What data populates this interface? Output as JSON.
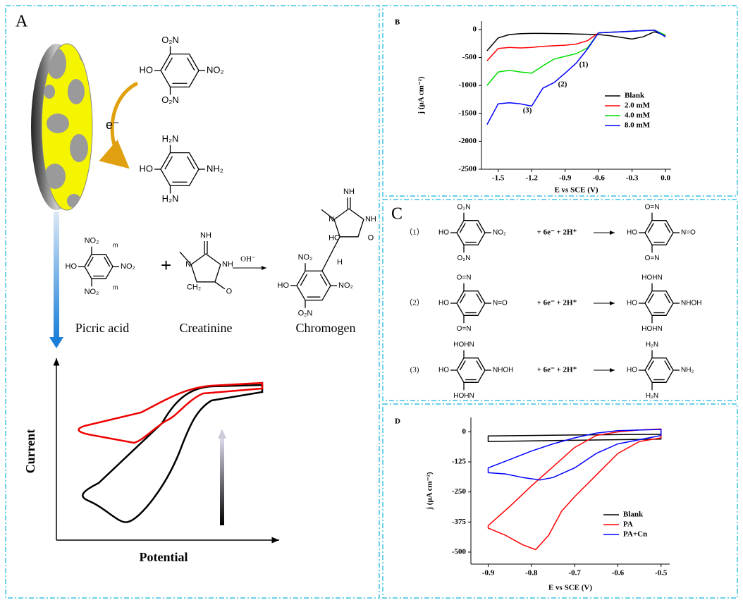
{
  "panel_a": {
    "label": "A",
    "nitro": [
      "O₂N",
      "HO",
      "NO₂",
      "O₂N"
    ],
    "electron": "e⁻",
    "amine": [
      "H₂N",
      "HO",
      "NH₂",
      "H₂N"
    ],
    "picric": [
      "NO₂",
      "HO",
      "NO₂",
      "NO₂"
    ],
    "marks": [
      "m",
      "m"
    ],
    "plus": "+",
    "creatinine": [
      "NH",
      "N",
      "NH",
      "CH₂",
      "O"
    ],
    "reagent": "OH⁻",
    "chromogen": [
      "NH",
      "N",
      "NH",
      "HC",
      "O",
      "H",
      "NO₂",
      "HO",
      "NO₂",
      "O₂N"
    ],
    "names": [
      "Picric acid",
      "Creatinine",
      "Chromogen"
    ],
    "y_axis": "Current",
    "x_axis": "Potential"
  },
  "panel_c": {
    "label": "C",
    "rows": [
      {
        "step": "（1）",
        "left": [
          "O₂N",
          "HO",
          "NO₂",
          "O₂N"
        ],
        "reagents": "+ 6e⁻ + 2H⁺",
        "right": [
          "O=N",
          "HO",
          "N=O",
          "O=N"
        ]
      },
      {
        "step": "（2）",
        "left": [
          "O=N",
          "HO",
          "N=O",
          "O=N"
        ],
        "reagents": "+ 6e⁻ + 2H⁺",
        "right": [
          "HOHN",
          "HO",
          "NHOH",
          "HOHN"
        ]
      },
      {
        "step": "(3)",
        "left": [
          "HOHN",
          "HO",
          "NHOH",
          "HOHN"
        ],
        "reagents": "+ 6e⁻ + 2H⁺",
        "right": [
          "H₂N",
          "HO",
          "NH₂",
          "H₂N"
        ]
      }
    ]
  },
  "chart_data": [
    {
      "type": "line",
      "panel_label": "B",
      "xlabel": "E vs SCE (V)",
      "ylabel": "j (μA cm⁻²)",
      "x": [
        -1.6,
        -1.5,
        -1.4,
        -1.3,
        -1.2,
        -1.1,
        -1.0,
        -0.9,
        -0.8,
        -0.7,
        -0.6,
        -0.5,
        -0.4,
        -0.3,
        -0.2,
        -0.1,
        0.0
      ],
      "series": [
        {
          "name": "Blank",
          "color": "#000000",
          "values": [
            -380,
            -150,
            -90,
            -75,
            -70,
            -70,
            -72,
            -75,
            -80,
            -85,
            -90,
            -110,
            -140,
            -170,
            -130,
            -40,
            -100
          ]
        },
        {
          "name": "2.0 mM",
          "color": "#ff0000",
          "values": [
            -560,
            -340,
            -320,
            -330,
            -320,
            -300,
            -290,
            -280,
            -260,
            -200,
            -60,
            -50,
            -40,
            -30,
            -20,
            -10,
            -110
          ]
        },
        {
          "name": "4.0 mM",
          "color": "#00dd00",
          "values": [
            -1000,
            -760,
            -730,
            -760,
            -780,
            -650,
            -530,
            -480,
            -430,
            -330,
            -60,
            -50,
            -40,
            -30,
            -20,
            -10,
            -100
          ]
        },
        {
          "name": "8.0 mM",
          "color": "#0000ff",
          "values": [
            -1700,
            -1330,
            -1310,
            -1330,
            -1370,
            -1050,
            -950,
            -780,
            -600,
            -350,
            -60,
            -50,
            -40,
            -30,
            -20,
            -10,
            -130
          ]
        }
      ],
      "annotations": [
        "(1)",
        "(2)",
        "(3)"
      ],
      "xlim": [
        -1.65,
        0.05
      ],
      "xticks": [
        -1.5,
        -1.2,
        -0.9,
        -0.6,
        -0.3,
        {
          "value": 0,
          "label": "0.0"
        }
      ],
      "ylim": [
        -2500,
        150
      ],
      "yticks": [
        0,
        -500,
        -1000,
        -1500,
        -2000,
        -2500
      ],
      "legend": "right"
    },
    {
      "type": "line",
      "panel_label": "D",
      "xlabel": "E vs SCE (V)",
      "ylabel": "j (μA cm⁻²)",
      "series": [
        {
          "name": "Blank",
          "color": "#000000",
          "x": [
            -0.5,
            -0.7,
            -0.9,
            -0.9,
            -0.7,
            -0.5,
            -0.5
          ],
          "values": [
            -10,
            -13,
            -17,
            -40,
            -35,
            -30,
            -10
          ]
        },
        {
          "name": "PA",
          "color": "#ff0000",
          "x": [
            -0.5,
            -0.55,
            -0.6,
            -0.65,
            -0.7,
            -0.73,
            -0.76,
            -0.79,
            -0.82,
            -0.86,
            -0.9,
            -0.9,
            -0.85,
            -0.8,
            -0.75,
            -0.7,
            -0.65,
            -0.6,
            -0.55,
            -0.5,
            -0.5
          ],
          "values": [
            -25,
            -40,
            -90,
            -180,
            -270,
            -330,
            -430,
            -490,
            -470,
            -430,
            -400,
            -390,
            -310,
            -225,
            -145,
            -65,
            -15,
            0,
            8,
            12,
            -25
          ]
        },
        {
          "name": "PA+Cn",
          "color": "#0000ff",
          "x": [
            -0.5,
            -0.6,
            -0.65,
            -0.7,
            -0.75,
            -0.78,
            -0.82,
            -0.86,
            -0.9,
            -0.9,
            -0.85,
            -0.8,
            -0.75,
            -0.7,
            -0.65,
            -0.6,
            -0.5,
            -0.5
          ],
          "values": [
            -15,
            -50,
            -90,
            -150,
            -190,
            -200,
            -190,
            -175,
            -170,
            -150,
            -115,
            -80,
            -50,
            -25,
            -5,
            5,
            10,
            -15
          ]
        }
      ],
      "xlim": [
        -0.94,
        -0.48
      ],
      "xticks": [
        -0.9,
        -0.8,
        -0.7,
        -0.6,
        -0.5
      ],
      "ylim": [
        -550,
        60
      ],
      "yticks": [
        0,
        -125,
        -250,
        -375,
        -500
      ],
      "legend": "right"
    }
  ]
}
